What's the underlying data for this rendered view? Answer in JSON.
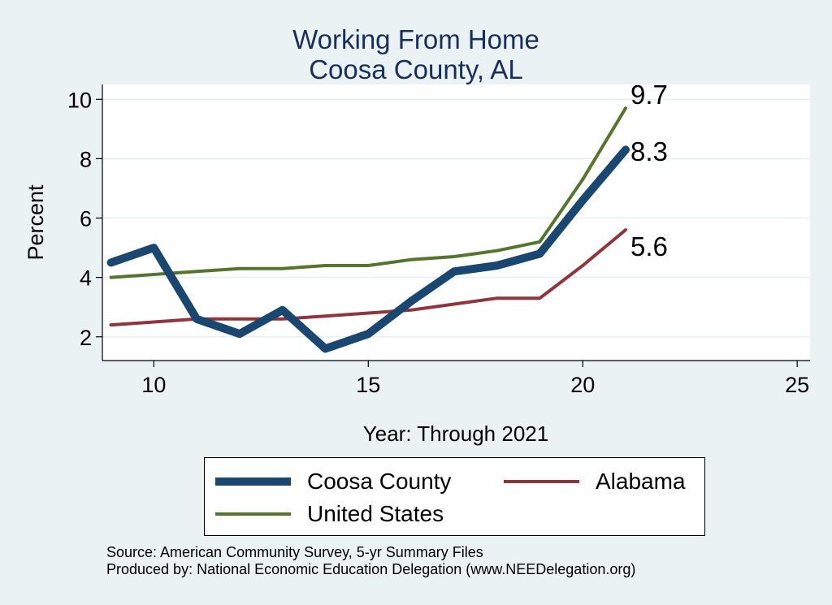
{
  "title": "Working From Home",
  "subtitle": "Coosa County, AL",
  "chart_data": {
    "type": "line",
    "title": "Working From Home",
    "subtitle": "Coosa County, AL",
    "xlabel": "Year: Through 2021",
    "ylabel": "Percent",
    "xlim": [
      8.8,
      25.3
    ],
    "ylim": [
      1.2,
      10.5
    ],
    "xticks": [
      10,
      15,
      20,
      25
    ],
    "yticks": [
      2,
      4,
      6,
      8,
      10
    ],
    "grid": true,
    "legend_position": "bottom",
    "series": [
      {
        "name": "Coosa County",
        "color": "#1a476f",
        "x": [
          9,
          10,
          11,
          12,
          13,
          14,
          15,
          16,
          17,
          18,
          19,
          20,
          21
        ],
        "values": [
          4.5,
          5.0,
          2.6,
          2.1,
          2.9,
          1.6,
          2.1,
          3.2,
          4.2,
          4.4,
          4.8,
          6.6,
          8.3
        ],
        "end_label": "8.3"
      },
      {
        "name": "Alabama",
        "color": "#90353b",
        "x": [
          9,
          10,
          11,
          12,
          13,
          14,
          15,
          16,
          17,
          18,
          19,
          20,
          21
        ],
        "values": [
          2.4,
          2.5,
          2.6,
          2.6,
          2.6,
          2.7,
          2.8,
          2.9,
          3.1,
          3.3,
          3.3,
          4.4,
          5.6
        ],
        "end_label": "5.6"
      },
      {
        "name": "United States",
        "color": "#55752f",
        "x": [
          9,
          10,
          11,
          12,
          13,
          14,
          15,
          16,
          17,
          18,
          19,
          20,
          21
        ],
        "values": [
          4.0,
          4.1,
          4.2,
          4.3,
          4.3,
          4.4,
          4.4,
          4.6,
          4.7,
          4.9,
          5.2,
          7.3,
          9.7
        ],
        "end_label": "9.7"
      }
    ]
  },
  "legend": {
    "items": [
      {
        "label": "Coosa County",
        "color": "#1a476f"
      },
      {
        "label": "Alabama",
        "color": "#90353b"
      },
      {
        "label": "United States",
        "color": "#55752f"
      }
    ]
  },
  "source": {
    "line1": "Source: American Community Survey, 5-yr Summary Files",
    "line2": "Produced by: National Economic Education Delegation (www.NEEDelegation.org)"
  }
}
